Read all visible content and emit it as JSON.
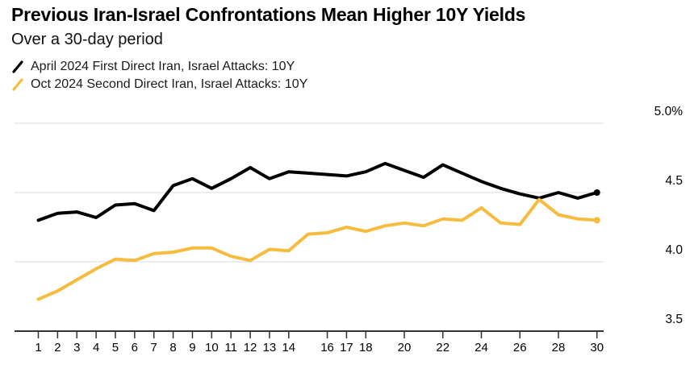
{
  "header": {
    "title": "Previous Iran-Israel Confrontations Mean Higher 10Y Yields",
    "subtitle": "Over a 30-day period"
  },
  "chart_data": {
    "type": "line",
    "title": "Previous Iran-Israel Confrontations Mean Higher 10Y Yields",
    "subtitle": "Over a 30-day period",
    "xlabel": "",
    "ylabel": "",
    "xlim": [
      1,
      30
    ],
    "ylim": [
      3.5,
      5.0
    ],
    "grid": "horizontal",
    "legend_position": "top-left",
    "x": [
      1,
      2,
      3,
      4,
      5,
      6,
      7,
      8,
      9,
      10,
      11,
      12,
      13,
      14,
      15,
      16,
      17,
      18,
      19,
      20,
      21,
      22,
      23,
      24,
      25,
      26,
      27,
      28,
      29,
      30
    ],
    "x_tick_days": [
      1,
      2,
      3,
      4,
      5,
      6,
      7,
      8,
      9,
      10,
      11,
      12,
      13,
      14,
      16,
      17,
      18,
      20,
      22,
      24,
      26,
      28,
      30
    ],
    "y_ticks": [
      {
        "value": 5.0,
        "label": "5.0%",
        "gridline": true
      },
      {
        "value": 4.5,
        "label": "4.5",
        "gridline": true
      },
      {
        "value": 4.0,
        "label": "4.0",
        "gridline": true
      },
      {
        "value": 3.5,
        "label": "3.5",
        "gridline": false
      }
    ],
    "series": [
      {
        "name": "April 2024 First Direct Iran, Israel Attacks: 10Y",
        "color": "#000000",
        "end_marker": true,
        "values": [
          4.3,
          4.35,
          4.36,
          4.32,
          4.41,
          4.42,
          4.37,
          4.55,
          4.6,
          4.53,
          4.6,
          4.68,
          4.6,
          4.65,
          4.64,
          4.63,
          4.62,
          4.65,
          4.71,
          4.66,
          4.61,
          4.7,
          4.64,
          4.58,
          4.53,
          4.49,
          4.46,
          4.5,
          4.46,
          4.5
        ]
      },
      {
        "name": "Oct 2024 Second Direct Iran, Israel Attacks: 10Y",
        "color": "#F6BC40",
        "end_marker": true,
        "values": [
          3.73,
          3.79,
          3.87,
          3.95,
          4.02,
          4.01,
          4.06,
          4.07,
          4.1,
          4.1,
          4.04,
          4.01,
          4.09,
          4.08,
          4.2,
          4.21,
          4.25,
          4.22,
          4.26,
          4.28,
          4.26,
          4.31,
          4.3,
          4.39,
          4.28,
          4.27,
          4.45,
          4.34,
          4.31,
          4.3
        ]
      }
    ],
    "colors": {
      "gridline": "#e2e2e2",
      "axis": "#333333",
      "tick": "#333333"
    }
  }
}
